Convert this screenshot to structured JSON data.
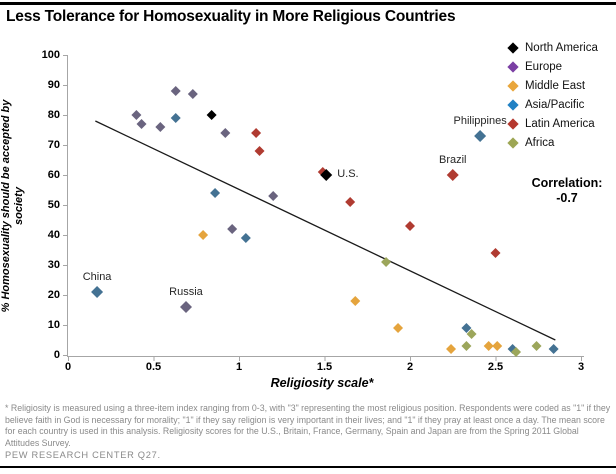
{
  "page": {
    "footnote": "* Religiosity is measured using a three-item index ranging from 0-3, with \"3\" representing the most religious position. Respondents were coded as \"1\" if they believe faith in God is necessary for morality; \"1\" if they say religion is very important in their lives; and \"1\" if they pray at least once a day. The mean score for each country is used in this analysis. Religiosity scores for the U.S., Britain, France, Germany, Spain and Japan are from the Spring 2011 Global Attitudes Survey.",
    "source": "PEW RESEARCH CENTER Q27."
  },
  "chart_data": {
    "type": "scatter",
    "title": "Less Tolerance for Homosexuality in More Religious Countries",
    "xlabel": "Religiosity scale*",
    "ylabel": "% Homosexuality should be accepted by society",
    "ylabel_wrap": [
      "% Homosexuality should be accepted by",
      "society"
    ],
    "xlim": [
      0,
      3
    ],
    "ylim": [
      0,
      100
    ],
    "x_ticks": [
      "0",
      "0.5",
      "1",
      "1.5",
      "2",
      "2.5",
      "3"
    ],
    "y_ticks": [
      0,
      10,
      20,
      30,
      40,
      50,
      60,
      70,
      80,
      90,
      100
    ],
    "grid": false,
    "legend_position": "right",
    "correlation": {
      "label": "Correlation:",
      "value": "-0.7"
    },
    "trendline": {
      "x1": 0.16,
      "y1": 78,
      "x2": 2.85,
      "y2": 5
    },
    "colors": {
      "axis": "#A6A6A6",
      "trendline": "#1a1a1a",
      "footnote_text": "#8A8A8A",
      "point_label_text": "#262626",
      "rule": "#000000"
    },
    "series": [
      {
        "name": "North America",
        "legend_color": "#000000",
        "point_color": "#000000",
        "points": [
          {
            "x": 0.84,
            "y": 80
          },
          {
            "x": 1.51,
            "y": 60,
            "label": "U.S.",
            "label_anchor": "right"
          }
        ]
      },
      {
        "name": "Europe",
        "legend_color": "#7B3FA4",
        "point_color": "#6A647F",
        "points": [
          {
            "x": 0.4,
            "y": 80
          },
          {
            "x": 0.43,
            "y": 77
          },
          {
            "x": 0.54,
            "y": 76
          },
          {
            "x": 0.63,
            "y": 88
          },
          {
            "x": 0.73,
            "y": 87
          },
          {
            "x": 0.92,
            "y": 74
          },
          {
            "x": 0.96,
            "y": 42
          },
          {
            "x": 1.2,
            "y": 53
          },
          {
            "x": 0.69,
            "y": 16,
            "label": "Russia",
            "label_anchor": "above"
          }
        ]
      },
      {
        "name": "Middle East",
        "legend_color": "#E9A63C",
        "point_color": "#E5A43D",
        "points": [
          {
            "x": 0.79,
            "y": 40
          },
          {
            "x": 1.68,
            "y": 18
          },
          {
            "x": 1.93,
            "y": 9
          },
          {
            "x": 2.24,
            "y": 2
          },
          {
            "x": 2.46,
            "y": 3
          },
          {
            "x": 2.51,
            "y": 3
          }
        ]
      },
      {
        "name": "Asia/Pacific",
        "legend_color": "#2181C4",
        "point_color": "#447293",
        "points": [
          {
            "x": 0.17,
            "y": 21,
            "label": "China",
            "label_anchor": "above"
          },
          {
            "x": 0.63,
            "y": 79
          },
          {
            "x": 0.86,
            "y": 54
          },
          {
            "x": 1.04,
            "y": 39
          },
          {
            "x": 2.41,
            "y": 73,
            "label": "Philippines",
            "label_anchor": "above"
          },
          {
            "x": 2.33,
            "y": 9
          },
          {
            "x": 2.6,
            "y": 2
          },
          {
            "x": 2.84,
            "y": 2
          }
        ]
      },
      {
        "name": "Latin America",
        "legend_color": "#B5382E",
        "point_color": "#B03B31",
        "points": [
          {
            "x": 1.1,
            "y": 74
          },
          {
            "x": 1.12,
            "y": 68
          },
          {
            "x": 1.49,
            "y": 61
          },
          {
            "x": 1.65,
            "y": 51
          },
          {
            "x": 2.0,
            "y": 43
          },
          {
            "x": 2.25,
            "y": 60,
            "label": "Brazil",
            "label_anchor": "above"
          },
          {
            "x": 2.5,
            "y": 34
          }
        ]
      },
      {
        "name": "Africa",
        "legend_color": "#9DA654",
        "point_color": "#9CA65B",
        "points": [
          {
            "x": 1.86,
            "y": 31
          },
          {
            "x": 2.33,
            "y": 3
          },
          {
            "x": 2.36,
            "y": 7
          },
          {
            "x": 2.62,
            "y": 1
          },
          {
            "x": 2.74,
            "y": 3
          }
        ]
      }
    ]
  }
}
